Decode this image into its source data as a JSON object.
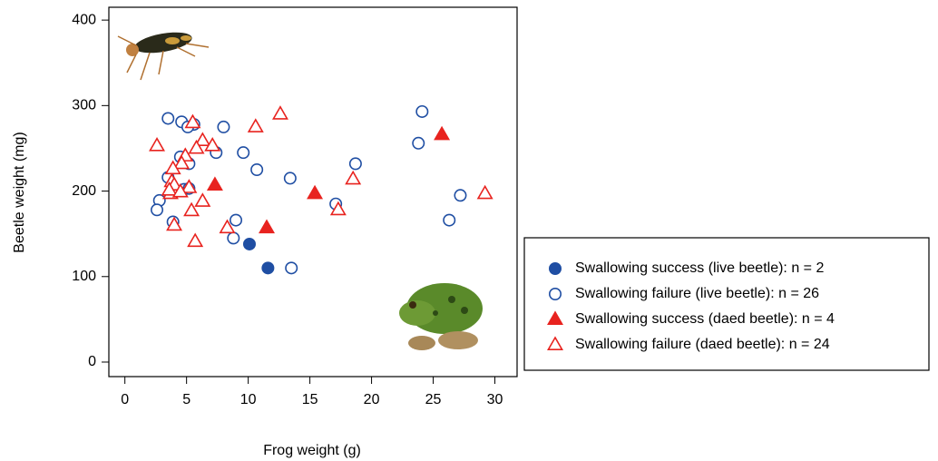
{
  "chart_data": {
    "type": "scatter",
    "x_label": "Frog weight (g)",
    "y_label": "Beetle weight (mg)",
    "xlim": [
      -1.3,
      31.8
    ],
    "ylim": [
      -17,
      415
    ],
    "xticks": [
      0,
      5,
      10,
      15,
      20,
      25,
      30
    ],
    "yticks": [
      0,
      100,
      200,
      300,
      400
    ],
    "series": [
      {
        "name": "Swallowing success (live beetle): n = 2",
        "color": "#1f4ea3",
        "marker": "circle",
        "filled": true,
        "x": [
          10.1,
          11.6
        ],
        "values": [
          138,
          110
        ]
      },
      {
        "name": "Swallowing failure (live beetle): n = 26",
        "color": "#1f4ea3",
        "marker": "circle",
        "filled": false,
        "x": [
          3.5,
          4.6,
          5.6,
          5.1,
          8.0,
          9.6,
          7.4,
          4.5,
          5.2,
          10.7,
          13.4,
          18.7,
          3.5,
          4.8,
          2.8,
          2.6,
          3.9,
          9.0,
          8.8,
          17.1,
          23.8,
          24.1,
          27.2,
          26.3,
          13.5,
          5.2
        ],
        "values": [
          285,
          281,
          278,
          275,
          275,
          245,
          245,
          240,
          232,
          225,
          215,
          232,
          216,
          202,
          189,
          178,
          164,
          166,
          145,
          185,
          256,
          293,
          195,
          166,
          110,
          203
        ]
      },
      {
        "name": "Swallowing success (daed beetle): n = 4",
        "color": "#e8231f",
        "marker": "triangle",
        "filled": true,
        "x": [
          7.3,
          11.5,
          15.4,
          25.7
        ],
        "values": [
          207,
          157,
          197,
          266
        ]
      },
      {
        "name": "Swallowing failure (daed beetle): n = 24",
        "color": "#e8231f",
        "marker": "triangle",
        "filled": false,
        "x": [
          2.6,
          12.6,
          10.6,
          6.3,
          7.1,
          5.8,
          4.9,
          4.6,
          3.9,
          3.8,
          4.0,
          3.7,
          5.2,
          6.3,
          5.4,
          4.0,
          5.7,
          8.3,
          18.5,
          17.3,
          29.2,
          5.5,
          3.6,
          4.5
        ],
        "values": [
          253,
          290,
          275,
          259,
          253,
          250,
          241,
          232,
          226,
          211,
          207,
          197,
          204,
          188,
          177,
          160,
          141,
          157,
          214,
          178,
          197,
          280,
          201,
          199
        ]
      }
    ]
  }
}
